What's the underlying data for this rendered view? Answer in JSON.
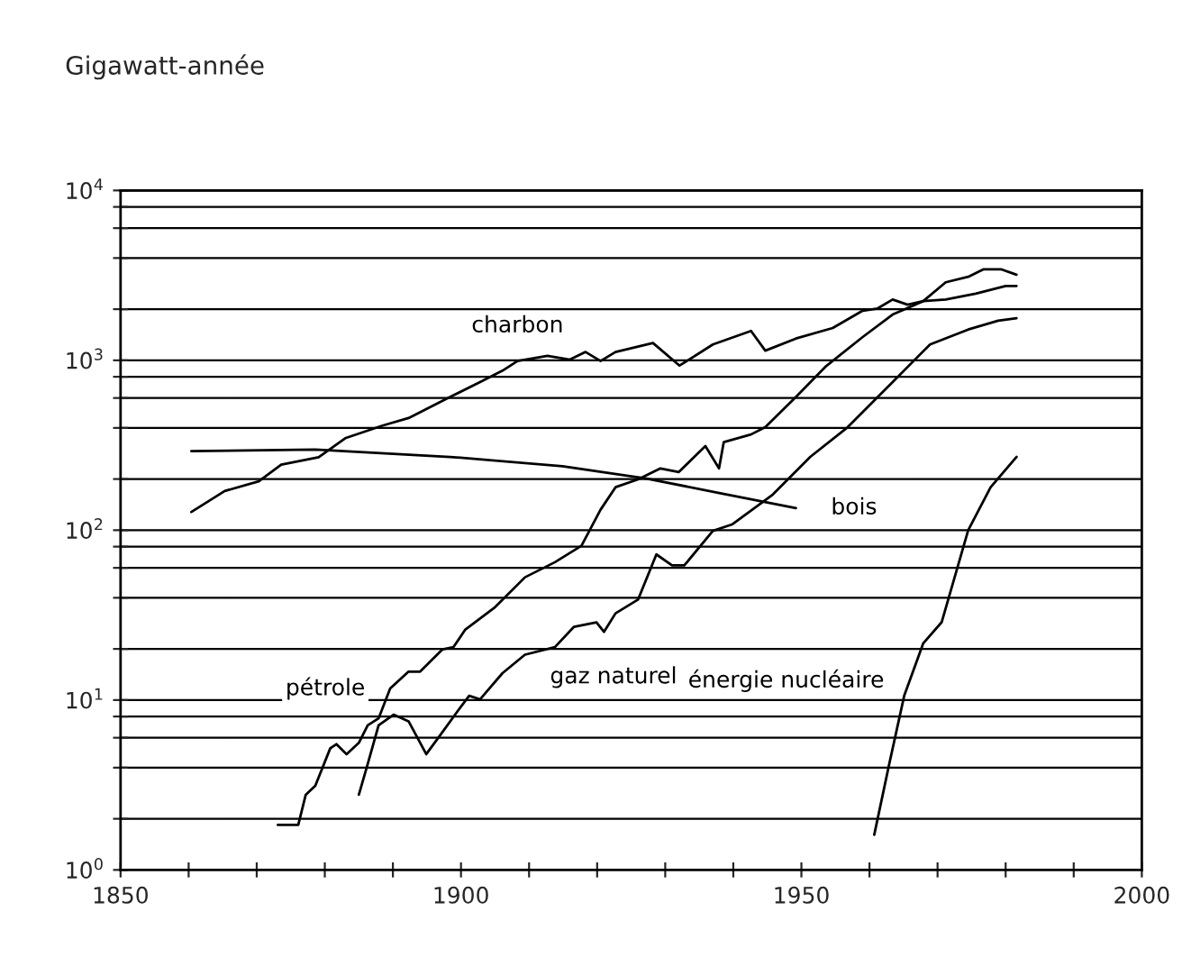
{
  "chart_data": {
    "type": "line",
    "ylabel": "Gigawatt-année",
    "log": "y",
    "grid": "y",
    "legend": false,
    "marker": "none",
    "line_style": "solid",
    "xlim": [
      1850,
      2000
    ],
    "xticks": [
      1850,
      {
        "value": 1860,
        "label": null
      },
      {
        "value": 1870,
        "label": null
      },
      {
        "value": 1880,
        "label": null
      },
      {
        "value": 1890,
        "label": null
      },
      1900,
      {
        "value": 1910,
        "label": null
      },
      {
        "value": 1920,
        "label": null
      },
      {
        "value": 1930,
        "label": null
      },
      {
        "value": 1940,
        "label": null
      },
      1950,
      {
        "value": 1960,
        "label": null
      },
      {
        "value": 1970,
        "label": null
      },
      {
        "value": 1980,
        "label": null
      },
      {
        "value": 1990,
        "label": null
      },
      2000
    ],
    "ylim": [
      1,
      10000
    ],
    "yticks": [
      {
        "value": 1,
        "label": "10$^{0}$"
      },
      {
        "value": 2,
        "label": null
      },
      {
        "value": 4,
        "label": null
      },
      {
        "value": 6,
        "label": null
      },
      {
        "value": 8,
        "label": null
      },
      {
        "value": 10,
        "label": "10$^{1}$"
      },
      {
        "value": 20,
        "label": null
      },
      {
        "value": 40,
        "label": null
      },
      {
        "value": 60,
        "label": null
      },
      {
        "value": 80,
        "label": null
      },
      {
        "value": 100,
        "label": "10$^{2}$"
      },
      {
        "value": 200,
        "label": null
      },
      {
        "value": 400,
        "label": null
      },
      {
        "value": 600,
        "label": null
      },
      {
        "value": 800,
        "label": null
      },
      {
        "value": 1000,
        "label": "10$^{3}$"
      },
      {
        "value": 2000,
        "label": null
      },
      {
        "value": 4000,
        "label": null
      },
      {
        "value": 6000,
        "label": null
      },
      {
        "value": 8000,
        "label": null
      },
      {
        "value": 10000,
        "label": "10$^{4}$"
      }
    ],
    "series": [
      {
        "name": "charbon",
        "color": "#000000",
        "x": [
          1860.4,
          1865.3,
          1870.3,
          1873.6,
          1879.1,
          1883.0,
          1888.5,
          1892.3,
          1898.4,
          1902.8,
          1906.1,
          1908.3,
          1912.7,
          1916.0,
          1918.3,
          1920.5,
          1922.7,
          1928.2,
          1932.1,
          1937.0,
          1942.6,
          1944.7,
          1949.2,
          1954.6,
          1959.0,
          1961.2,
          1963.4,
          1965.6,
          1967.9,
          1971.2,
          1975.6,
          1980.0,
          1981.6
        ],
        "values": [
          128,
          170,
          194,
          243,
          269,
          348,
          413,
          457,
          608,
          745,
          869,
          990,
          1063,
          1010,
          1120,
          990,
          1120,
          1265,
          931,
          1240,
          1490,
          1140,
          1343,
          1549,
          1960,
          2020,
          2280,
          2125,
          2230,
          2280,
          2470,
          2740,
          2740
        ]
      },
      {
        "name": "bois",
        "color": "#000000",
        "x": [
          1860.4,
          1878.6,
          1898.4,
          1914.9,
          1927.1,
          1938.1,
          1949.2
        ],
        "values": [
          292,
          298,
          270,
          238,
          202,
          165,
          135
        ]
      },
      {
        "name": "pétrole",
        "color": "#000000",
        "x": [
          1873.1,
          1876.1,
          1877.2,
          1878.6,
          1880.8,
          1881.7,
          1883.2,
          1885.0,
          1886.3,
          1887.9,
          1889.6,
          1892.3,
          1894.0,
          1897.3,
          1898.9,
          1900.6,
          1905.0,
          1909.4,
          1913.8,
          1917.7,
          1920.5,
          1922.7,
          1926.0,
          1929.3,
          1932.0,
          1935.9,
          1937.9,
          1938.6,
          1942.6,
          1944.7,
          1949.2,
          1953.5,
          1959.0,
          1963.4,
          1967.9,
          1971.2,
          1974.5,
          1976.7,
          1979.4,
          1981.6
        ],
        "values": [
          1.84,
          1.84,
          2.77,
          3.13,
          5.2,
          5.5,
          4.8,
          5.6,
          7.1,
          7.8,
          11.7,
          14.7,
          14.7,
          19.9,
          20.5,
          25.9,
          35.2,
          52.8,
          64.8,
          81,
          132,
          179,
          199,
          231,
          220,
          313,
          231,
          330,
          366,
          404,
          608,
          914,
          1371,
          1860,
          2230,
          2880,
          3100,
          3430,
          3430,
          3190
        ]
      },
      {
        "name": "gaz naturel",
        "color": "#000000",
        "x": [
          1885.0,
          1886.3,
          1887.9,
          1890.1,
          1892.3,
          1894.9,
          1896.8,
          1899.5,
          1901.2,
          1902.8,
          1906.1,
          1909.4,
          1913.8,
          1916.6,
          1919.9,
          1921.0,
          1922.7,
          1926.0,
          1928.7,
          1931.0,
          1932.8,
          1937.0,
          1939.8,
          1945.8,
          1951.3,
          1956.8,
          1963.4,
          1968.9,
          1974.5,
          1978.9,
          1981.6
        ],
        "values": [
          2.77,
          4.2,
          7.1,
          8.2,
          7.5,
          4.8,
          6.1,
          8.6,
          10.6,
          10.1,
          14.4,
          18.5,
          20.5,
          27,
          28.7,
          25.2,
          32.4,
          39,
          72,
          62,
          62,
          99,
          108,
          162,
          270,
          404,
          745,
          1240,
          1518,
          1710,
          1770
        ]
      },
      {
        "name": "énergie nucléaire",
        "color": "#000000",
        "x": [
          1960.7,
          1962.9,
          1965.1,
          1967.9,
          1970.6,
          1974.5,
          1977.8,
          1981.6
        ],
        "values": [
          1.61,
          4.2,
          10.6,
          21.6,
          28.7,
          100,
          179,
          270
        ]
      }
    ]
  }
}
